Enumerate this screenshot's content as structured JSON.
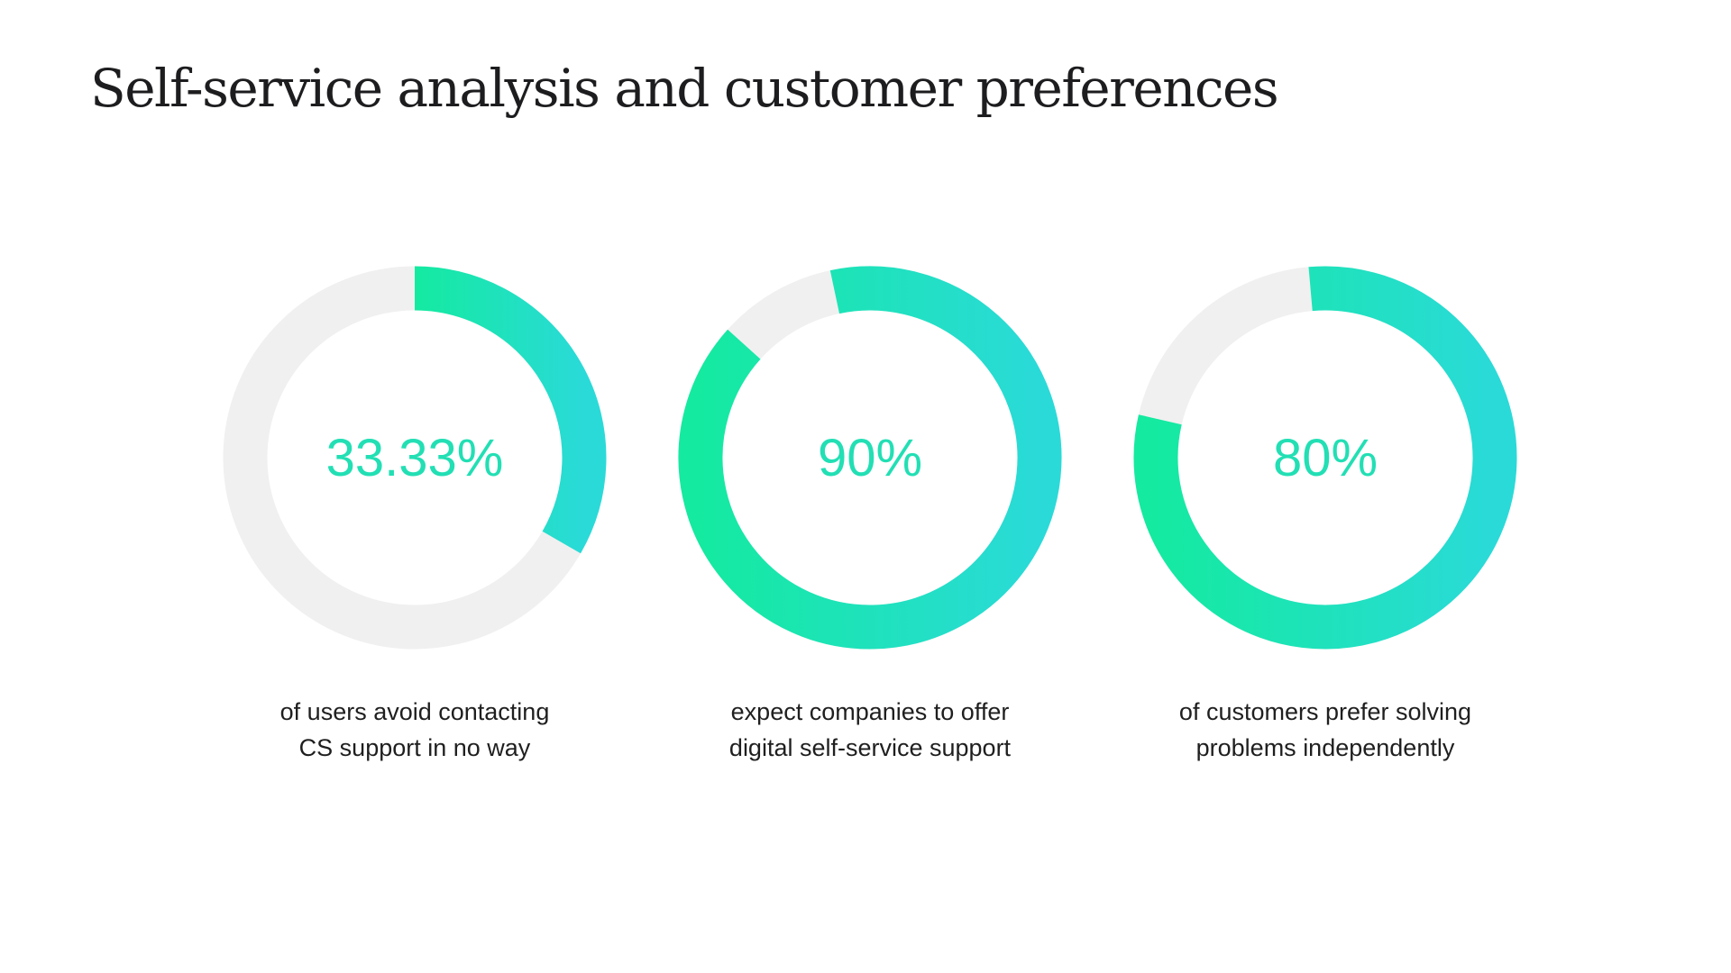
{
  "title": "Self-service analysis and customer preferences",
  "colors": {
    "track": "#F0F0F0",
    "gradient_start": "#14EAA0",
    "gradient_end": "#2ADAD8",
    "text_accent": "#22DFB4"
  },
  "chart_data": [
    {
      "type": "donut",
      "value": 33.33,
      "label": "33.33%",
      "caption": [
        "of users avoid contacting",
        "CS support in no way"
      ]
    },
    {
      "type": "donut",
      "value": 90,
      "label": "90%",
      "caption": [
        "expect companies to offer",
        "digital self-service support"
      ]
    },
    {
      "type": "donut",
      "value": 80,
      "label": "80%",
      "caption": [
        "of customers prefer solving",
        "problems independently"
      ]
    }
  ]
}
